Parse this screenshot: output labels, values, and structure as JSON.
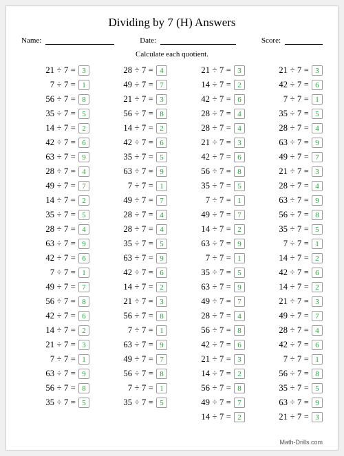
{
  "title": "Dividing by 7 (H) Answers",
  "labels": {
    "name": "Name:",
    "date": "Date:",
    "score": "Score:"
  },
  "instruction": "Calculate each quotient.",
  "divisor": 7,
  "answer_color": "#2aa038",
  "box_border_color": "#999999",
  "columns": [
    [
      21,
      7,
      56,
      35,
      14,
      42,
      63,
      28,
      49,
      14,
      35,
      28,
      63,
      42,
      7,
      49,
      56,
      42,
      14,
      21,
      7,
      63,
      56,
      35
    ],
    [
      28,
      49,
      21,
      56,
      14,
      42,
      35,
      63,
      7,
      49,
      28,
      28,
      35,
      63,
      42,
      14,
      21,
      56,
      7,
      63,
      49,
      56,
      7,
      35
    ],
    [
      21,
      14,
      42,
      28,
      28,
      21,
      42,
      56,
      35,
      7,
      49,
      14,
      63,
      7,
      35,
      63,
      49,
      28,
      56,
      42,
      21,
      14,
      56,
      49,
      14
    ],
    [
      21,
      42,
      7,
      35,
      28,
      63,
      49,
      21,
      28,
      63,
      56,
      35,
      7,
      14,
      42,
      14,
      21,
      49,
      28,
      42,
      7,
      56,
      35,
      63,
      21
    ]
  ],
  "footer": "Math-Drills.com"
}
